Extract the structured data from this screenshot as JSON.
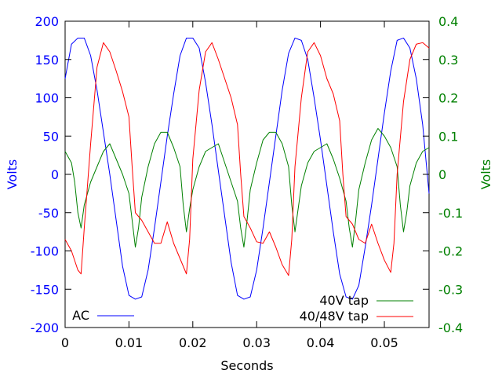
{
  "chart_data": {
    "type": "line",
    "xlabel": "Seconds",
    "ylabel_left": "Volts",
    "ylabel_right": "Volts",
    "xlim": [
      0,
      0.057
    ],
    "ylim_left": [
      -200,
      200
    ],
    "ylim_right": [
      -0.4,
      0.4
    ],
    "x_ticks": [
      0,
      0.01,
      0.02,
      0.03,
      0.04,
      0.05
    ],
    "x_tick_labels": [
      "0",
      "0.01",
      "0.02",
      "0.03",
      "0.04",
      "0.05"
    ],
    "y_left_ticks": [
      200,
      150,
      100,
      50,
      0,
      -50,
      -100,
      -150,
      -200
    ],
    "y_left_tick_labels": [
      "200",
      "150",
      "100",
      "50",
      "0",
      "-50",
      "-100",
      "-150",
      "-200"
    ],
    "y_right_ticks": [
      0.4,
      0.3,
      0.2,
      0.1,
      0,
      -0.1,
      -0.2,
      -0.3,
      -0.4
    ],
    "y_right_tick_labels": [
      "0.4",
      "0.3",
      "0.2",
      "0.1",
      "0",
      "-0.1",
      "-0.2",
      "-0.3",
      "-0.4"
    ],
    "grid": false,
    "colors": {
      "left_axis": "#0000ff",
      "right_axis": "#008000"
    },
    "series": [
      {
        "name": "AC",
        "axis": "left",
        "color": "#0000ff",
        "legend_position": "bottom-left",
        "points": [
          [
            0.0,
            125
          ],
          [
            0.001,
            170
          ],
          [
            0.002,
            178
          ],
          [
            0.003,
            178
          ],
          [
            0.004,
            155
          ],
          [
            0.005,
            110
          ],
          [
            0.006,
            55
          ],
          [
            0.007,
            0
          ],
          [
            0.008,
            -60
          ],
          [
            0.009,
            -120
          ],
          [
            0.01,
            -158
          ],
          [
            0.011,
            -163
          ],
          [
            0.012,
            -160
          ],
          [
            0.013,
            -125
          ],
          [
            0.014,
            -70
          ],
          [
            0.015,
            -10
          ],
          [
            0.016,
            50
          ],
          [
            0.017,
            105
          ],
          [
            0.018,
            155
          ],
          [
            0.019,
            178
          ],
          [
            0.02,
            178
          ],
          [
            0.021,
            165
          ],
          [
            0.022,
            120
          ],
          [
            0.023,
            65
          ],
          [
            0.024,
            5
          ],
          [
            0.025,
            -55
          ],
          [
            0.026,
            -115
          ],
          [
            0.027,
            -158
          ],
          [
            0.028,
            -163
          ],
          [
            0.029,
            -160
          ],
          [
            0.03,
            -125
          ],
          [
            0.031,
            -70
          ],
          [
            0.032,
            -10
          ],
          [
            0.033,
            50
          ],
          [
            0.034,
            110
          ],
          [
            0.035,
            158
          ],
          [
            0.036,
            178
          ],
          [
            0.037,
            175
          ],
          [
            0.038,
            150
          ],
          [
            0.039,
            100
          ],
          [
            0.04,
            45
          ],
          [
            0.041,
            -15
          ],
          [
            0.042,
            -75
          ],
          [
            0.043,
            -130
          ],
          [
            0.044,
            -160
          ],
          [
            0.045,
            -163
          ],
          [
            0.046,
            -145
          ],
          [
            0.047,
            -95
          ],
          [
            0.048,
            -40
          ],
          [
            0.049,
            20
          ],
          [
            0.05,
            80
          ],
          [
            0.051,
            135
          ],
          [
            0.052,
            175
          ],
          [
            0.053,
            178
          ],
          [
            0.054,
            165
          ],
          [
            0.055,
            125
          ],
          [
            0.056,
            65
          ],
          [
            0.057,
            -25
          ]
        ]
      },
      {
        "name": "40V tap",
        "axis": "right",
        "color": "#008000",
        "legend_position": "bottom-right",
        "points": [
          [
            0.0,
            0.06
          ],
          [
            0.001,
            0.03
          ],
          [
            0.0015,
            -0.02
          ],
          [
            0.002,
            -0.1
          ],
          [
            0.0025,
            -0.14
          ],
          [
            0.003,
            -0.08
          ],
          [
            0.004,
            -0.02
          ],
          [
            0.005,
            0.02
          ],
          [
            0.006,
            0.06
          ],
          [
            0.007,
            0.08
          ],
          [
            0.008,
            0.04
          ],
          [
            0.009,
            0.0
          ],
          [
            0.01,
            -0.05
          ],
          [
            0.0105,
            -0.12
          ],
          [
            0.011,
            -0.19
          ],
          [
            0.0115,
            -0.14
          ],
          [
            0.012,
            -0.06
          ],
          [
            0.013,
            0.02
          ],
          [
            0.014,
            0.08
          ],
          [
            0.015,
            0.11
          ],
          [
            0.016,
            0.11
          ],
          [
            0.017,
            0.07
          ],
          [
            0.018,
            0.02
          ],
          [
            0.0185,
            -0.08
          ],
          [
            0.019,
            -0.15
          ],
          [
            0.0195,
            -0.09
          ],
          [
            0.02,
            -0.04
          ],
          [
            0.021,
            0.02
          ],
          [
            0.022,
            0.06
          ],
          [
            0.023,
            0.07
          ],
          [
            0.024,
            0.08
          ],
          [
            0.025,
            0.03
          ],
          [
            0.026,
            -0.02
          ],
          [
            0.027,
            -0.07
          ],
          [
            0.0275,
            -0.14
          ],
          [
            0.028,
            -0.19
          ],
          [
            0.0285,
            -0.12
          ],
          [
            0.029,
            -0.04
          ],
          [
            0.03,
            0.03
          ],
          [
            0.031,
            0.09
          ],
          [
            0.032,
            0.11
          ],
          [
            0.033,
            0.11
          ],
          [
            0.034,
            0.08
          ],
          [
            0.035,
            0.02
          ],
          [
            0.0355,
            -0.08
          ],
          [
            0.036,
            -0.15
          ],
          [
            0.0365,
            -0.09
          ],
          [
            0.037,
            -0.03
          ],
          [
            0.038,
            0.03
          ],
          [
            0.039,
            0.06
          ],
          [
            0.04,
            0.07
          ],
          [
            0.041,
            0.08
          ],
          [
            0.042,
            0.04
          ],
          [
            0.043,
            -0.01
          ],
          [
            0.044,
            -0.07
          ],
          [
            0.0445,
            -0.14
          ],
          [
            0.045,
            -0.19
          ],
          [
            0.0455,
            -0.12
          ],
          [
            0.046,
            -0.04
          ],
          [
            0.047,
            0.03
          ],
          [
            0.048,
            0.09
          ],
          [
            0.049,
            0.12
          ],
          [
            0.05,
            0.1
          ],
          [
            0.051,
            0.07
          ],
          [
            0.052,
            0.02
          ],
          [
            0.0525,
            -0.08
          ],
          [
            0.053,
            -0.15
          ],
          [
            0.0535,
            -0.1
          ],
          [
            0.054,
            -0.03
          ],
          [
            0.055,
            0.03
          ],
          [
            0.056,
            0.06
          ],
          [
            0.057,
            0.07
          ]
        ]
      },
      {
        "name": "40/48V tap",
        "axis": "left",
        "color": "#ff0000",
        "legend_position": "bottom-right",
        "points": [
          [
            0.0,
            -85
          ],
          [
            0.001,
            -100
          ],
          [
            0.002,
            -125
          ],
          [
            0.0025,
            -130
          ],
          [
            0.003,
            -70
          ],
          [
            0.004,
            40
          ],
          [
            0.005,
            140
          ],
          [
            0.006,
            172
          ],
          [
            0.007,
            160
          ],
          [
            0.008,
            135
          ],
          [
            0.009,
            108
          ],
          [
            0.01,
            75
          ],
          [
            0.0105,
            10
          ],
          [
            0.011,
            -50
          ],
          [
            0.012,
            -60
          ],
          [
            0.013,
            -75
          ],
          [
            0.014,
            -90
          ],
          [
            0.015,
            -90
          ],
          [
            0.016,
            -62
          ],
          [
            0.017,
            -90
          ],
          [
            0.018,
            -110
          ],
          [
            0.019,
            -130
          ],
          [
            0.0195,
            -85
          ],
          [
            0.02,
            20
          ],
          [
            0.021,
            110
          ],
          [
            0.022,
            160
          ],
          [
            0.023,
            172
          ],
          [
            0.024,
            150
          ],
          [
            0.025,
            125
          ],
          [
            0.026,
            100
          ],
          [
            0.027,
            65
          ],
          [
            0.0275,
            0
          ],
          [
            0.028,
            -55
          ],
          [
            0.029,
            -70
          ],
          [
            0.03,
            -88
          ],
          [
            0.031,
            -90
          ],
          [
            0.032,
            -75
          ],
          [
            0.033,
            -95
          ],
          [
            0.034,
            -118
          ],
          [
            0.035,
            -132
          ],
          [
            0.0355,
            -85
          ],
          [
            0.036,
            10
          ],
          [
            0.037,
            100
          ],
          [
            0.038,
            160
          ],
          [
            0.039,
            172
          ],
          [
            0.04,
            155
          ],
          [
            0.041,
            125
          ],
          [
            0.042,
            105
          ],
          [
            0.043,
            70
          ],
          [
            0.0435,
            0
          ],
          [
            0.044,
            -55
          ],
          [
            0.045,
            -65
          ],
          [
            0.046,
            -85
          ],
          [
            0.047,
            -90
          ],
          [
            0.048,
            -65
          ],
          [
            0.049,
            -90
          ],
          [
            0.05,
            -112
          ],
          [
            0.051,
            -128
          ],
          [
            0.0515,
            -90
          ],
          [
            0.052,
            0
          ],
          [
            0.053,
            95
          ],
          [
            0.054,
            150
          ],
          [
            0.055,
            170
          ],
          [
            0.056,
            172
          ],
          [
            0.057,
            165
          ]
        ]
      }
    ]
  }
}
